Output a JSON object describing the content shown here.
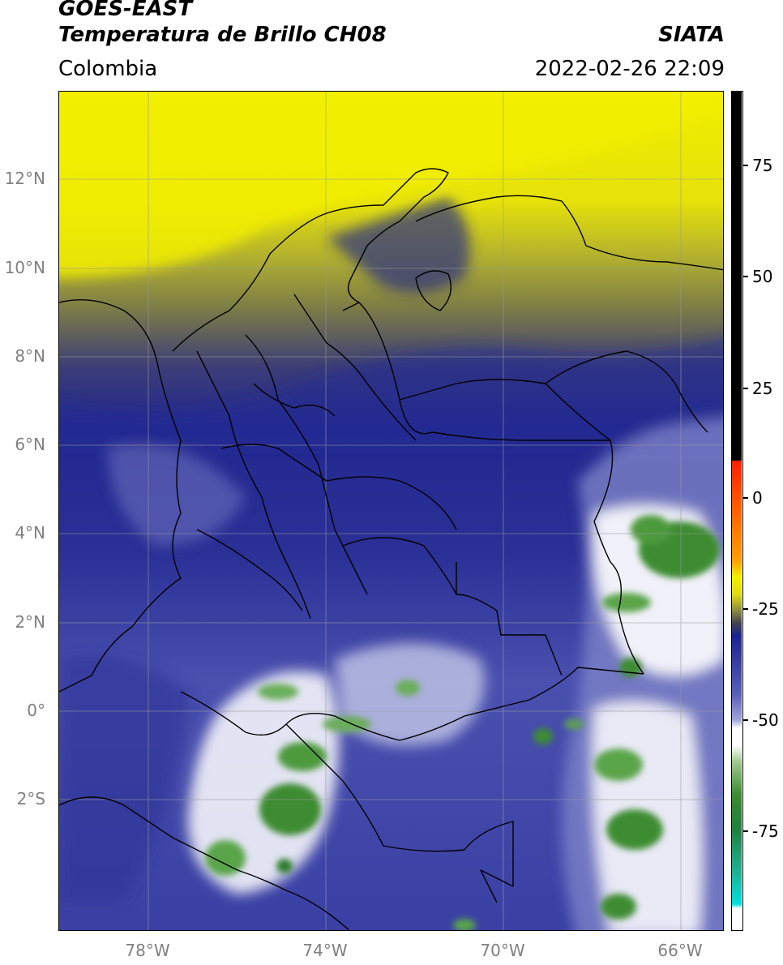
{
  "header": {
    "line1": "GOES-EAST",
    "line2": "Temperatura de Brillo CH08",
    "region": "Colombia",
    "org": "SIATA",
    "timestamp": "2022-02-26 22:09"
  },
  "axes": {
    "lat_ticks": [
      "12°N",
      "10°N",
      "8°N",
      "6°N",
      "4°N",
      "2°N",
      "0°",
      "2°S"
    ],
    "lon_ticks": [
      "78°W",
      "74°W",
      "70°W",
      "66°W"
    ]
  },
  "colorbar": {
    "ticks": [
      "75",
      "50",
      "25",
      "0",
      "-25",
      "-50",
      "-75"
    ],
    "colors": {
      "black": "#000000",
      "red": "#ff2000",
      "orange": "#ff9a00",
      "yellow": "#f4f000",
      "olive": "#7c7a3c",
      "navy": "#1c2290",
      "slate": "#5a60b8",
      "white": "#ffffff",
      "green": "#3a8a30",
      "teal": "#20b090",
      "cyan": "#00e0e0"
    }
  }
}
